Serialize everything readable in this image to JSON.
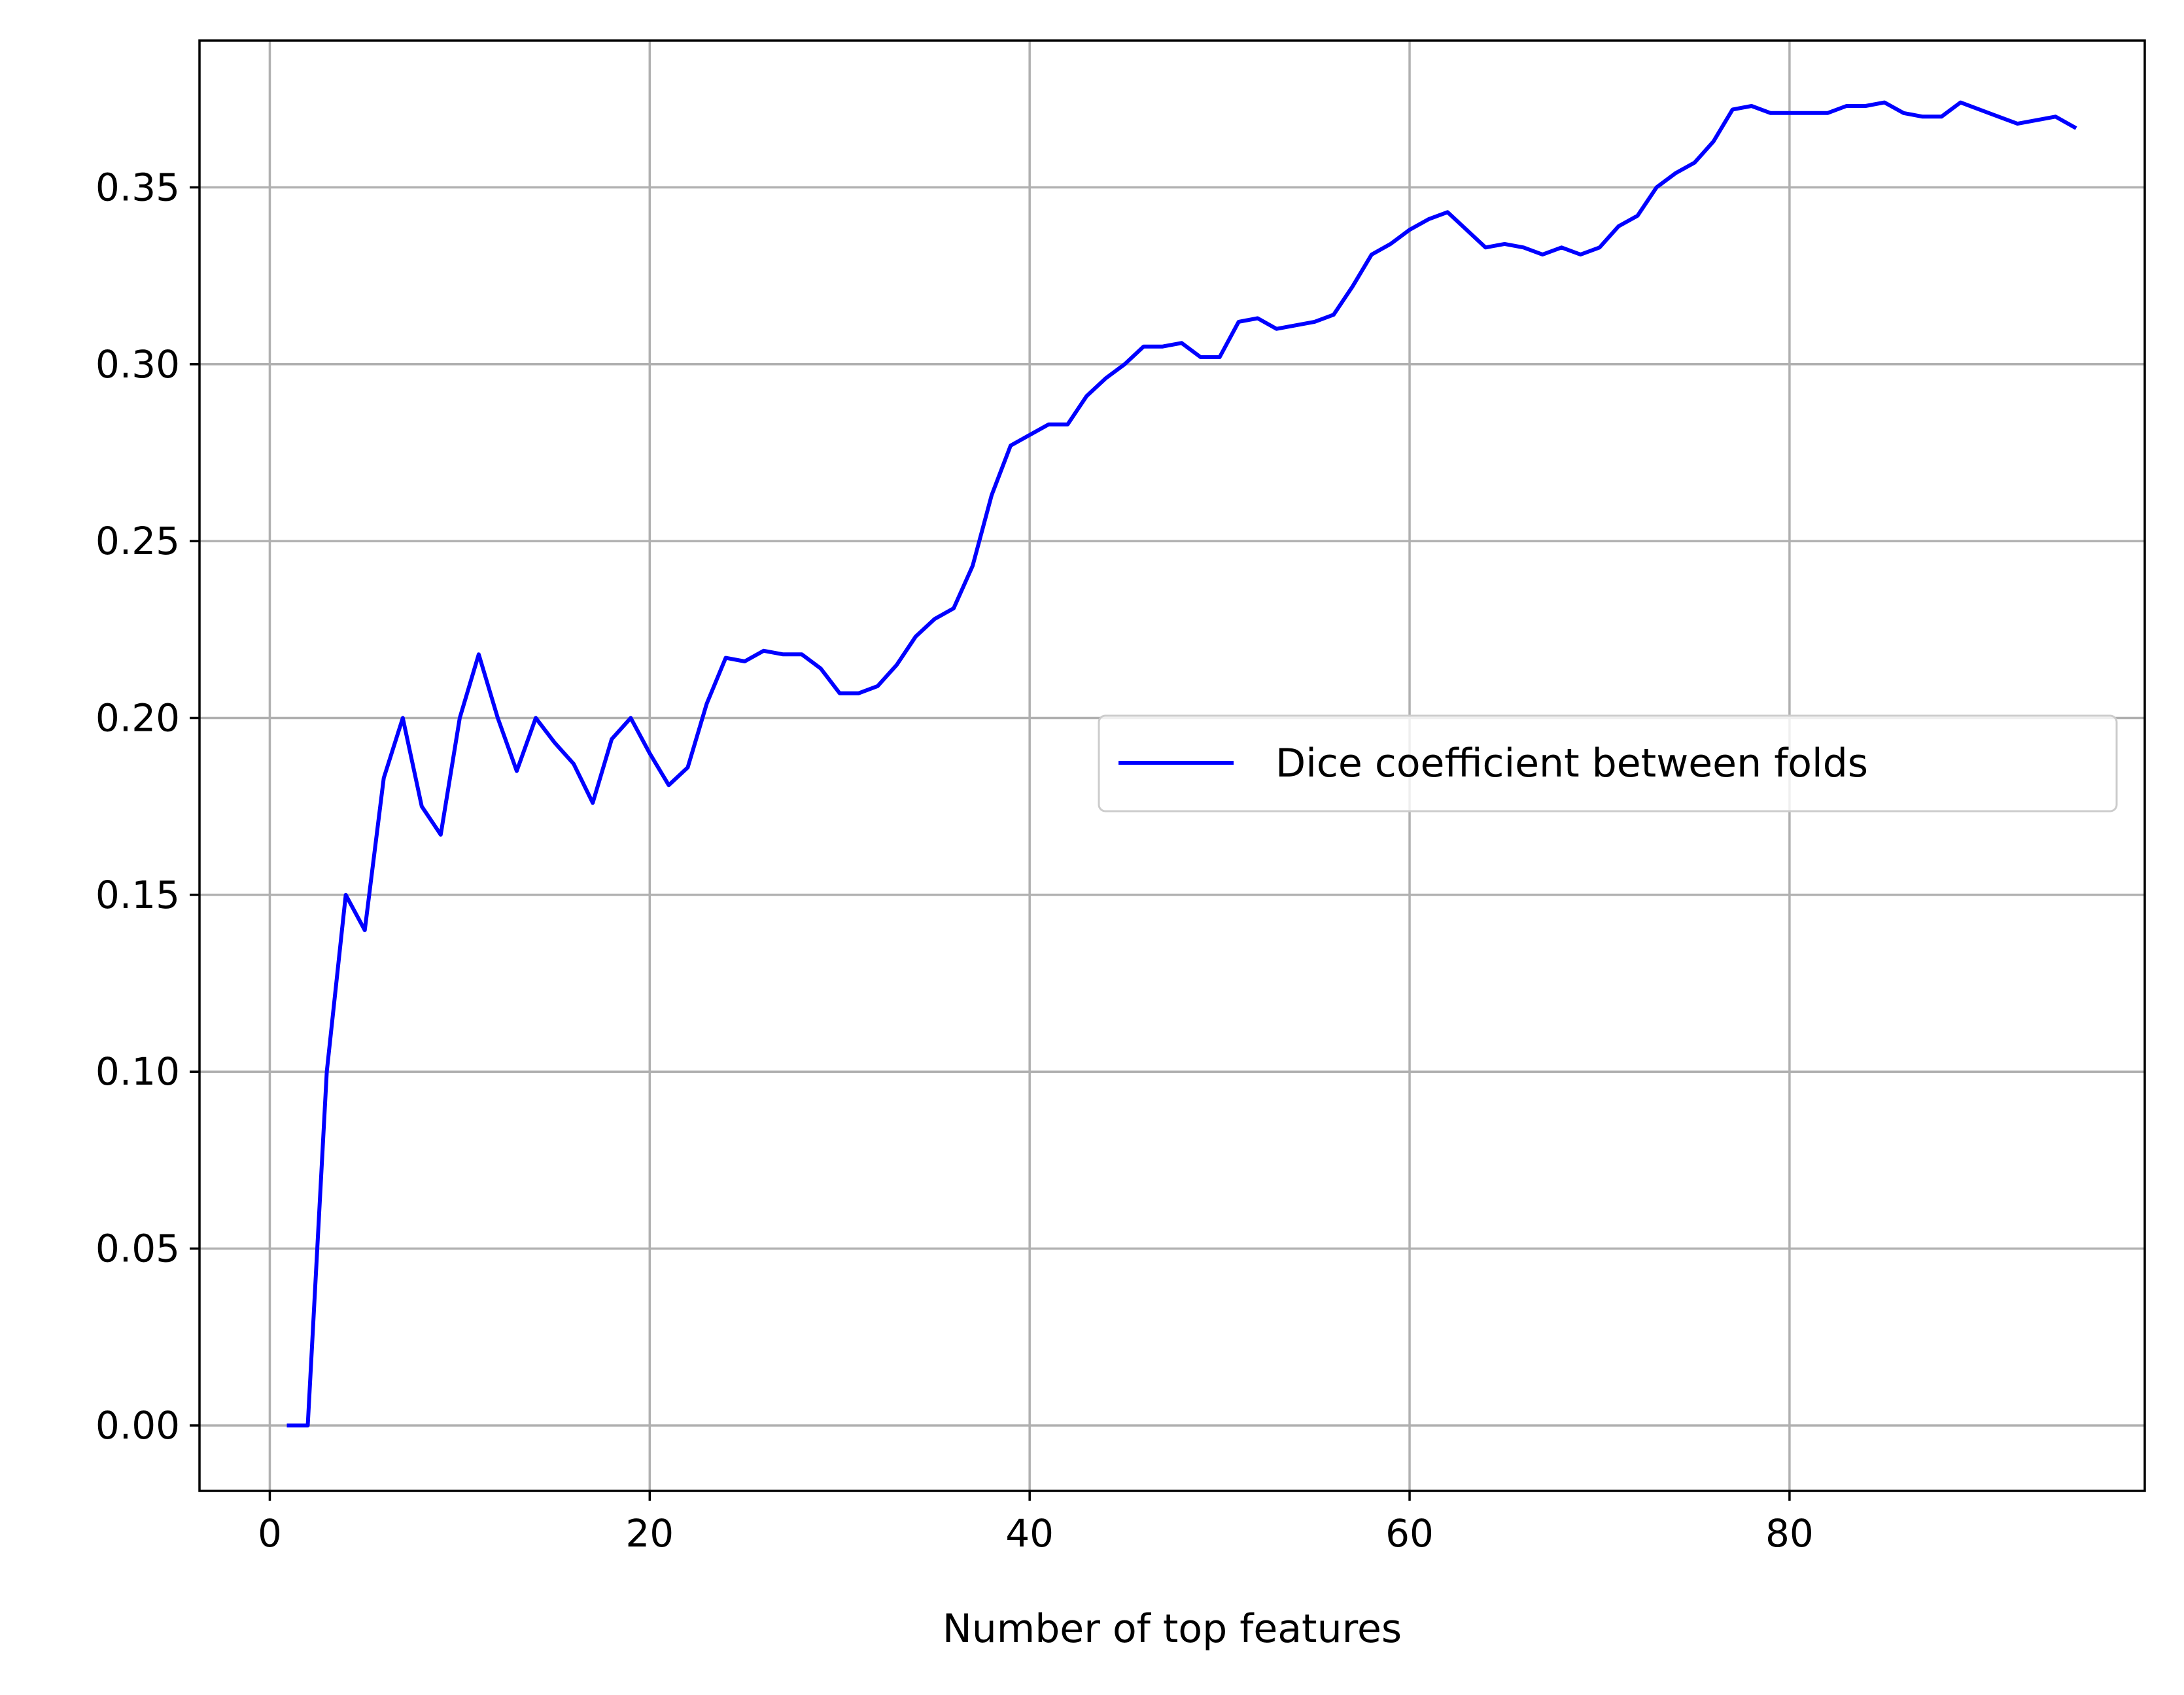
{
  "chart_data": {
    "type": "line",
    "title": "",
    "xlabel": "Number of top features",
    "ylabel": "",
    "xlim": [
      -3.7,
      98.7
    ],
    "ylim": [
      -0.0185,
      0.3915
    ],
    "xticks": [
      0,
      20,
      40,
      60,
      80
    ],
    "xtick_labels": [
      "0",
      "20",
      "40",
      "60",
      "80"
    ],
    "yticks": [
      0.0,
      0.05,
      0.1,
      0.15,
      0.2,
      0.25,
      0.3,
      0.35
    ],
    "ytick_labels": [
      "0.00",
      "0.05",
      "0.10",
      "0.15",
      "0.20",
      "0.25",
      "0.30",
      "0.35"
    ],
    "grid": true,
    "legend_position": "center-right",
    "series": [
      {
        "name": "Dice coefficient between folds",
        "color": "#0000ff",
        "x": [
          1,
          2,
          3,
          4,
          5,
          6,
          7,
          8,
          9,
          10,
          11,
          12,
          13,
          14,
          15,
          16,
          17,
          18,
          19,
          20,
          21,
          22,
          23,
          24,
          25,
          26,
          27,
          28,
          29,
          30,
          31,
          32,
          33,
          34,
          35,
          36,
          37,
          38,
          39,
          40,
          41,
          42,
          43,
          44,
          45,
          46,
          47,
          48,
          49,
          50,
          51,
          52,
          53,
          54,
          55,
          56,
          57,
          58,
          59,
          60,
          61,
          62,
          63,
          64,
          65,
          66,
          67,
          68,
          69,
          70,
          71,
          72,
          73,
          74,
          75,
          76,
          77,
          78,
          79,
          80,
          81,
          82,
          83,
          84,
          85,
          86,
          87,
          88,
          89,
          90,
          91,
          92,
          93,
          94,
          95
        ],
        "y": [
          0.0,
          0.0,
          0.1,
          0.15,
          0.14,
          0.183,
          0.2,
          0.175,
          0.167,
          0.2,
          0.218,
          0.2,
          0.185,
          0.2,
          0.193,
          0.187,
          0.176,
          0.194,
          0.2,
          0.19,
          0.181,
          0.186,
          0.204,
          0.217,
          0.216,
          0.219,
          0.218,
          0.218,
          0.214,
          0.207,
          0.207,
          0.209,
          0.215,
          0.223,
          0.228,
          0.231,
          0.243,
          0.263,
          0.277,
          0.28,
          0.283,
          0.283,
          0.291,
          0.296,
          0.3,
          0.305,
          0.305,
          0.306,
          0.302,
          0.302,
          0.312,
          0.313,
          0.31,
          0.311,
          0.312,
          0.314,
          0.322,
          0.331,
          0.334,
          0.338,
          0.341,
          0.343,
          0.338,
          0.333,
          0.334,
          0.333,
          0.331,
          0.333,
          0.331,
          0.333,
          0.339,
          0.342,
          0.35,
          0.354,
          0.357,
          0.363,
          0.372,
          0.373,
          0.371,
          0.371,
          0.371,
          0.371,
          0.373,
          0.373,
          0.374,
          0.371,
          0.37,
          0.37,
          0.374,
          0.372,
          0.37,
          0.368,
          0.369,
          0.37,
          0.367
        ]
      }
    ]
  }
}
